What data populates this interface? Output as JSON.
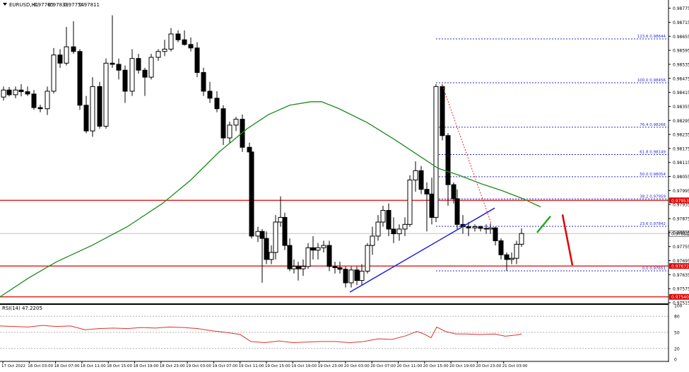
{
  "symbol_line": {
    "symbol": "EURUSD,H1",
    "open": "0.97765",
    "high": "0.97833",
    "low": "0.97754",
    "close": "0.97811"
  },
  "rsi_label": "RSI(14) 47.2205",
  "chart_data": {
    "type": "candlestick",
    "symbol": "EURUSD",
    "timeframe": "H1",
    "ylim": [
      0.97515,
      0.9878
    ],
    "price_ticks": [
      "0.98775",
      "0.98715",
      "0.98655",
      "0.98595",
      "0.98535",
      "0.98475",
      "0.98415",
      "0.98355",
      "0.98295",
      "0.98235",
      "0.98175",
      "0.98115",
      "0.98055",
      "0.97995",
      "0.97935",
      "0.97875",
      "0.97815",
      "0.97755",
      "0.97695",
      "0.97635",
      "0.97575",
      "0.97515"
    ],
    "time_labels": [
      "17 Oct 2022",
      "18 Oct 03:00",
      "18 Oct 07:00",
      "18 Oct 11:00",
      "18 Oct 15:00",
      "18 Oct 19:00",
      "18 Oct 23:00",
      "19 Oct 03:00",
      "19 Oct 07:00",
      "19 Oct 11:00",
      "19 Oct 15:00",
      "19 Oct 19:00",
      "19 Oct 23:00",
      "20 Oct 03:00",
      "20 Oct 07:00",
      "20 Oct 11:00",
      "20 Oct 15:00",
      "20 Oct 19:00",
      "20 Oct 23:00",
      "21 Oct 03:00"
    ],
    "current_price": {
      "value": 0.97811,
      "label": "0.97811"
    },
    "fib_levels": [
      {
        "ratio": "123.6",
        "value": 0.98644,
        "label": "123.6 0.98644"
      },
      {
        "ratio": "100.0",
        "value": 0.98456,
        "label": "100.0 0.98456"
      },
      {
        "ratio": "76.4",
        "value": 0.98266,
        "label": "76.4 0.98266"
      },
      {
        "ratio": "61.8",
        "value": 0.98149,
        "label": "61.8 0.98149"
      },
      {
        "ratio": "50.0",
        "value": 0.98054,
        "label": "50.0 0.98054"
      },
      {
        "ratio": "38.2",
        "value": 0.97959,
        "label": "38.2 0.97959"
      },
      {
        "ratio": "23.6",
        "value": 0.97842,
        "label": "23.6 0.97842"
      },
      {
        "ratio": "0.0",
        "value": 0.97651,
        "label": "0.0 0.97651"
      }
    ],
    "horizontal_levels": [
      {
        "value": 0.97953,
        "label": "0.97953",
        "color": "#e00000"
      },
      {
        "value": 0.97672,
        "label": "0.97672",
        "color": "#e00000"
      },
      {
        "value": 0.9754,
        "label": "0.97540",
        "color": "#e00000"
      }
    ],
    "moving_average": {
      "color": "#1a8c1a",
      "points": [
        [
          0,
          0.9754
        ],
        [
          40,
          0.9762
        ],
        [
          80,
          0.9769
        ],
        [
          130,
          0.9776
        ],
        [
          180,
          0.9784
        ],
        [
          230,
          0.9794
        ],
        [
          270,
          0.9804
        ],
        [
          310,
          0.9816
        ],
        [
          350,
          0.9826
        ],
        [
          380,
          0.9832
        ],
        [
          410,
          0.9836
        ],
        [
          440,
          0.98375
        ],
        [
          455,
          0.98375
        ],
        [
          480,
          0.98345
        ],
        [
          520,
          0.98285
        ],
        [
          560,
          0.9821
        ],
        [
          590,
          0.9815
        ],
        [
          620,
          0.9809
        ],
        [
          650,
          0.9806
        ],
        [
          680,
          0.98025
        ],
        [
          710,
          0.97995
        ],
        [
          740,
          0.9796
        ],
        [
          765,
          0.97925
        ]
      ]
    },
    "trendline": {
      "color": "#1f24d6",
      "points": [
        [
          495,
          0.9756
        ],
        [
          700,
          0.9792
        ]
      ]
    },
    "annotations": [
      {
        "type": "dotted-line",
        "color": "#e03030",
        "points": [
          [
            626,
            0.98445
          ],
          [
            695,
            0.97855
          ]
        ]
      },
      {
        "type": "arrow-up",
        "color": "#22aa22",
        "points": [
          [
            760,
            0.97815
          ],
          [
            779,
            0.97885
          ]
        ]
      },
      {
        "type": "arrow-down",
        "color": "#e00000",
        "points": [
          [
            796,
            0.97892
          ],
          [
            810,
            0.97675
          ]
        ]
      }
    ],
    "candles": [
      {
        "x": 5,
        "o": 0.98395,
        "h": 0.9844,
        "l": 0.9838,
        "c": 0.98425
      },
      {
        "x": 13,
        "o": 0.98425,
        "h": 0.98438,
        "l": 0.98398,
        "c": 0.98405
      },
      {
        "x": 22,
        "o": 0.98405,
        "h": 0.9844,
        "l": 0.9839,
        "c": 0.98425
      },
      {
        "x": 30,
        "o": 0.98425,
        "h": 0.9845,
        "l": 0.98398,
        "c": 0.98418
      },
      {
        "x": 39,
        "o": 0.98418,
        "h": 0.9844,
        "l": 0.984,
        "c": 0.98408
      },
      {
        "x": 48,
        "o": 0.98408,
        "h": 0.98425,
        "l": 0.9834,
        "c": 0.9835
      },
      {
        "x": 57,
        "o": 0.9835,
        "h": 0.98362,
        "l": 0.9833,
        "c": 0.98345
      },
      {
        "x": 67,
        "o": 0.98345,
        "h": 0.9844,
        "l": 0.98318,
        "c": 0.9842
      },
      {
        "x": 76,
        "o": 0.9842,
        "h": 0.98605,
        "l": 0.9841,
        "c": 0.98575
      },
      {
        "x": 85,
        "o": 0.98575,
        "h": 0.986,
        "l": 0.9852,
        "c": 0.9854
      },
      {
        "x": 94,
        "o": 0.9854,
        "h": 0.98695,
        "l": 0.9853,
        "c": 0.9861
      },
      {
        "x": 104,
        "o": 0.9861,
        "h": 0.9872,
        "l": 0.9858,
        "c": 0.9859
      },
      {
        "x": 113,
        "o": 0.9859,
        "h": 0.986,
        "l": 0.9834,
        "c": 0.9836
      },
      {
        "x": 122,
        "o": 0.9836,
        "h": 0.984,
        "l": 0.9824,
        "c": 0.9825
      },
      {
        "x": 131,
        "o": 0.9825,
        "h": 0.9848,
        "l": 0.98225,
        "c": 0.9844
      },
      {
        "x": 141,
        "o": 0.9844,
        "h": 0.9846,
        "l": 0.9826,
        "c": 0.9827
      },
      {
        "x": 150,
        "o": 0.9827,
        "h": 0.9856,
        "l": 0.9826,
        "c": 0.9854
      },
      {
        "x": 159,
        "o": 0.9854,
        "h": 0.98745,
        "l": 0.9852,
        "c": 0.98535
      },
      {
        "x": 168,
        "o": 0.98535,
        "h": 0.9856,
        "l": 0.9847,
        "c": 0.9851
      },
      {
        "x": 177,
        "o": 0.9851,
        "h": 0.9853,
        "l": 0.9837,
        "c": 0.9842
      },
      {
        "x": 187,
        "o": 0.9842,
        "h": 0.986,
        "l": 0.984,
        "c": 0.9856
      },
      {
        "x": 196,
        "o": 0.9856,
        "h": 0.9858,
        "l": 0.98495,
        "c": 0.9851
      },
      {
        "x": 205,
        "o": 0.9851,
        "h": 0.9852,
        "l": 0.984,
        "c": 0.9848
      },
      {
        "x": 214,
        "o": 0.9848,
        "h": 0.9858,
        "l": 0.9847,
        "c": 0.98565
      },
      {
        "x": 224,
        "o": 0.98565,
        "h": 0.986,
        "l": 0.9855,
        "c": 0.9859
      },
      {
        "x": 233,
        "o": 0.9859,
        "h": 0.9864,
        "l": 0.9857,
        "c": 0.986
      },
      {
        "x": 242,
        "o": 0.986,
        "h": 0.9869,
        "l": 0.9859,
        "c": 0.98665
      },
      {
        "x": 252,
        "o": 0.98665,
        "h": 0.9868,
        "l": 0.9863,
        "c": 0.9864
      },
      {
        "x": 261,
        "o": 0.9864,
        "h": 0.9868,
        "l": 0.98615,
        "c": 0.9862
      },
      {
        "x": 270,
        "o": 0.9862,
        "h": 0.9865,
        "l": 0.9859,
        "c": 0.98605
      },
      {
        "x": 279,
        "o": 0.98605,
        "h": 0.9863,
        "l": 0.9848,
        "c": 0.985
      },
      {
        "x": 288,
        "o": 0.985,
        "h": 0.9852,
        "l": 0.984,
        "c": 0.9842
      },
      {
        "x": 297,
        "o": 0.9842,
        "h": 0.9846,
        "l": 0.9837,
        "c": 0.9839
      },
      {
        "x": 307,
        "o": 0.9839,
        "h": 0.9842,
        "l": 0.9833,
        "c": 0.98345
      },
      {
        "x": 316,
        "o": 0.98345,
        "h": 0.9836,
        "l": 0.9819,
        "c": 0.9822
      },
      {
        "x": 325,
        "o": 0.9822,
        "h": 0.9829,
        "l": 0.982,
        "c": 0.98275
      },
      {
        "x": 334,
        "o": 0.98275,
        "h": 0.9831,
        "l": 0.9825,
        "c": 0.983
      },
      {
        "x": 343,
        "o": 0.983,
        "h": 0.9832,
        "l": 0.9816,
        "c": 0.9818
      },
      {
        "x": 353,
        "o": 0.9818,
        "h": 0.982,
        "l": 0.981,
        "c": 0.9816
      },
      {
        "x": 356,
        "o": 0.9816,
        "h": 0.98175,
        "l": 0.9779,
        "c": 0.978
      },
      {
        "x": 365,
        "o": 0.978,
        "h": 0.9784,
        "l": 0.97775,
        "c": 0.9782
      },
      {
        "x": 371,
        "o": 0.9782,
        "h": 0.9783,
        "l": 0.976,
        "c": 0.9779
      },
      {
        "x": 377,
        "o": 0.9779,
        "h": 0.9782,
        "l": 0.9768,
        "c": 0.977
      },
      {
        "x": 384,
        "o": 0.977,
        "h": 0.9776,
        "l": 0.9768,
        "c": 0.9773
      },
      {
        "x": 390,
        "o": 0.9773,
        "h": 0.9789,
        "l": 0.977,
        "c": 0.9786
      },
      {
        "x": 397,
        "o": 0.9786,
        "h": 0.9797,
        "l": 0.9784,
        "c": 0.9788
      },
      {
        "x": 403,
        "o": 0.9788,
        "h": 0.979,
        "l": 0.9774,
        "c": 0.9776
      },
      {
        "x": 410,
        "o": 0.9776,
        "h": 0.9779,
        "l": 0.9765,
        "c": 0.9766
      },
      {
        "x": 416,
        "o": 0.9766,
        "h": 0.977,
        "l": 0.9764,
        "c": 0.9767
      },
      {
        "x": 422,
        "o": 0.9767,
        "h": 0.9769,
        "l": 0.9761,
        "c": 0.9766
      },
      {
        "x": 429,
        "o": 0.9766,
        "h": 0.977,
        "l": 0.9763,
        "c": 0.9767
      },
      {
        "x": 436,
        "o": 0.9767,
        "h": 0.9777,
        "l": 0.9766,
        "c": 0.9775
      },
      {
        "x": 443,
        "o": 0.9775,
        "h": 0.978,
        "l": 0.977,
        "c": 0.9774
      },
      {
        "x": 450,
        "o": 0.9774,
        "h": 0.9777,
        "l": 0.977,
        "c": 0.9775
      },
      {
        "x": 458,
        "o": 0.9775,
        "h": 0.9778,
        "l": 0.9773,
        "c": 0.9776
      },
      {
        "x": 466,
        "o": 0.9776,
        "h": 0.9778,
        "l": 0.9765,
        "c": 0.9767
      },
      {
        "x": 474,
        "o": 0.9767,
        "h": 0.9769,
        "l": 0.9764,
        "c": 0.97665
      },
      {
        "x": 481,
        "o": 0.97665,
        "h": 0.9769,
        "l": 0.9764,
        "c": 0.97658
      },
      {
        "x": 489,
        "o": 0.97658,
        "h": 0.9767,
        "l": 0.9758,
        "c": 0.976
      },
      {
        "x": 497,
        "o": 0.976,
        "h": 0.9767,
        "l": 0.9758,
        "c": 0.97655
      },
      {
        "x": 505,
        "o": 0.97655,
        "h": 0.9767,
        "l": 0.9759,
        "c": 0.9761
      },
      {
        "x": 512,
        "o": 0.9761,
        "h": 0.9768,
        "l": 0.9759,
        "c": 0.9765
      },
      {
        "x": 520,
        "o": 0.9765,
        "h": 0.9777,
        "l": 0.9764,
        "c": 0.9776
      },
      {
        "x": 527,
        "o": 0.9776,
        "h": 0.9784,
        "l": 0.9772,
        "c": 0.978
      },
      {
        "x": 535,
        "o": 0.978,
        "h": 0.9789,
        "l": 0.9778,
        "c": 0.9786
      },
      {
        "x": 542,
        "o": 0.9786,
        "h": 0.9793,
        "l": 0.9784,
        "c": 0.9791
      },
      {
        "x": 550,
        "o": 0.9791,
        "h": 0.9794,
        "l": 0.978,
        "c": 0.9783
      },
      {
        "x": 557,
        "o": 0.9783,
        "h": 0.9788,
        "l": 0.9777,
        "c": 0.9781
      },
      {
        "x": 565,
        "o": 0.9781,
        "h": 0.9785,
        "l": 0.9778,
        "c": 0.9783
      },
      {
        "x": 573,
        "o": 0.9783,
        "h": 0.9788,
        "l": 0.978,
        "c": 0.9785
      },
      {
        "x": 580,
        "o": 0.9785,
        "h": 0.9806,
        "l": 0.9784,
        "c": 0.9804
      },
      {
        "x": 588,
        "o": 0.9804,
        "h": 0.9812,
        "l": 0.9799,
        "c": 0.9808
      },
      {
        "x": 596,
        "o": 0.9808,
        "h": 0.981,
        "l": 0.9798,
        "c": 0.98
      },
      {
        "x": 604,
        "o": 0.98,
        "h": 0.9803,
        "l": 0.9782,
        "c": 0.9798
      },
      {
        "x": 611,
        "o": 0.9798,
        "h": 0.9805,
        "l": 0.9785,
        "c": 0.9788
      },
      {
        "x": 617,
        "o": 0.9788,
        "h": 0.9845,
        "l": 0.9786,
        "c": 0.9844
      },
      {
        "x": 626,
        "o": 0.9844,
        "h": 0.9845,
        "l": 0.9821,
        "c": 0.9823
      },
      {
        "x": 634,
        "o": 0.9823,
        "h": 0.9824,
        "l": 0.9793,
        "c": 0.9802
      },
      {
        "x": 642,
        "o": 0.9802,
        "h": 0.9803,
        "l": 0.9794,
        "c": 0.9796
      },
      {
        "x": 647,
        "o": 0.9796,
        "h": 0.98,
        "l": 0.9783,
        "c": 0.9785
      },
      {
        "x": 655,
        "o": 0.9785,
        "h": 0.9789,
        "l": 0.9781,
        "c": 0.9784
      },
      {
        "x": 663,
        "o": 0.9784,
        "h": 0.9786,
        "l": 0.978,
        "c": 0.97835
      },
      {
        "x": 672,
        "o": 0.97835,
        "h": 0.9785,
        "l": 0.9782,
        "c": 0.9784
      },
      {
        "x": 680,
        "o": 0.9784,
        "h": 0.97845,
        "l": 0.9782,
        "c": 0.97833
      },
      {
        "x": 688,
        "o": 0.97833,
        "h": 0.9785,
        "l": 0.9781,
        "c": 0.9783
      },
      {
        "x": 694,
        "o": 0.9783,
        "h": 0.97855,
        "l": 0.9781,
        "c": 0.97835
      },
      {
        "x": 701,
        "o": 0.97835,
        "h": 0.9784,
        "l": 0.9776,
        "c": 0.9778
      },
      {
        "x": 709,
        "o": 0.9778,
        "h": 0.9779,
        "l": 0.977,
        "c": 0.9772
      },
      {
        "x": 717,
        "o": 0.9772,
        "h": 0.9773,
        "l": 0.97651,
        "c": 0.977
      },
      {
        "x": 724,
        "o": 0.977,
        "h": 0.9773,
        "l": 0.9768,
        "c": 0.97705
      },
      {
        "x": 731,
        "o": 0.97705,
        "h": 0.9778,
        "l": 0.9768,
        "c": 0.97765
      },
      {
        "x": 738,
        "o": 0.97765,
        "h": 0.97833,
        "l": 0.97754,
        "c": 0.97811
      }
    ],
    "rsi": {
      "name": "RSI(14)",
      "value": 47.2205,
      "ylim": [
        0,
        100
      ],
      "ticks": [
        "100",
        "80",
        "50",
        "20",
        "0"
      ],
      "levels": [
        80,
        50,
        20
      ],
      "color": "#e03030",
      "points": [
        [
          0,
          62
        ],
        [
          20,
          61
        ],
        [
          40,
          60
        ],
        [
          60,
          63
        ],
        [
          80,
          61
        ],
        [
          100,
          62
        ],
        [
          120,
          55
        ],
        [
          140,
          57
        ],
        [
          160,
          58
        ],
        [
          180,
          57
        ],
        [
          200,
          59
        ],
        [
          220,
          58
        ],
        [
          240,
          60
        ],
        [
          260,
          59
        ],
        [
          280,
          57
        ],
        [
          300,
          53
        ],
        [
          320,
          50
        ],
        [
          340,
          46
        ],
        [
          355,
          33
        ],
        [
          375,
          31
        ],
        [
          395,
          34
        ],
        [
          415,
          31
        ],
        [
          435,
          32
        ],
        [
          455,
          33
        ],
        [
          475,
          33
        ],
        [
          495,
          31
        ],
        [
          515,
          33
        ],
        [
          535,
          38
        ],
        [
          555,
          37
        ],
        [
          575,
          44
        ],
        [
          590,
          52
        ],
        [
          600,
          47
        ],
        [
          610,
          40
        ],
        [
          618,
          60
        ],
        [
          630,
          52
        ],
        [
          645,
          47
        ],
        [
          660,
          47
        ],
        [
          680,
          46
        ],
        [
          700,
          47
        ],
        [
          715,
          43
        ],
        [
          730,
          45
        ],
        [
          738,
          47
        ]
      ]
    }
  }
}
